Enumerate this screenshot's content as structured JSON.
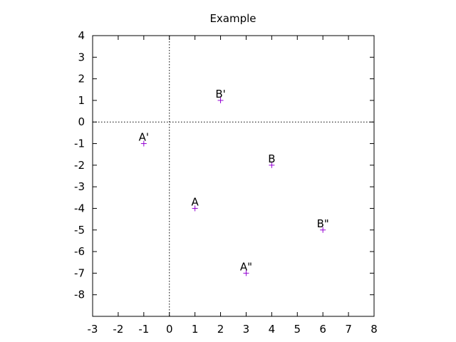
{
  "chart_data": {
    "type": "scatter",
    "title": "Example",
    "xlabel": "",
    "ylabel": "",
    "xlim": [
      -3,
      8
    ],
    "ylim": [
      -9,
      4
    ],
    "xticks": [
      -3,
      -2,
      -1,
      0,
      1,
      2,
      3,
      4,
      5,
      6,
      7,
      8
    ],
    "yticks": [
      -8,
      -7,
      -6,
      -5,
      -4,
      -3,
      -2,
      -1,
      0,
      1,
      2,
      3,
      4
    ],
    "grid": false,
    "zero_axes": true,
    "marker": "+",
    "marker_color": "#9400d3",
    "series": [
      {
        "points": [
          {
            "x": 1,
            "y": -4,
            "label": "A"
          },
          {
            "x": -1,
            "y": -1,
            "label": "A'"
          },
          {
            "x": 3,
            "y": -7,
            "label": "A\""
          },
          {
            "x": 4,
            "y": -2,
            "label": "B"
          },
          {
            "x": 2,
            "y": 1,
            "label": "B'"
          },
          {
            "x": 6,
            "y": -5,
            "label": "B\""
          }
        ]
      }
    ]
  }
}
